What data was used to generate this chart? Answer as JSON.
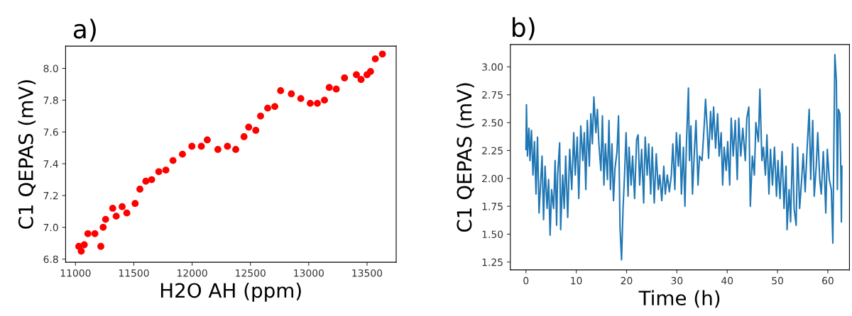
{
  "chart_data": [
    {
      "type": "scatter",
      "title": "a)",
      "xlabel": "H2O AH (ppm)",
      "ylabel": "C1 QEPAS (mV)",
      "marker": "circle",
      "grid": false,
      "legend": false,
      "x": [
        11028,
        11049,
        11075,
        11106,
        11166,
        11217,
        11237,
        11258,
        11319,
        11349,
        11400,
        11440,
        11511,
        11552,
        11603,
        11653,
        11714,
        11775,
        11836,
        11917,
        11998,
        12079,
        12130,
        12221,
        12303,
        12374,
        12445,
        12485,
        12546,
        12587,
        12648,
        12709,
        12759,
        12851,
        12932,
        13013,
        13074,
        13135,
        13176,
        13236,
        13307,
        13409,
        13449,
        13500,
        13530,
        13571,
        13632
      ],
      "series": [
        {
          "color": "#ff0000",
          "values": [
            6.88,
            6.85,
            6.89,
            6.96,
            6.96,
            6.88,
            7.0,
            7.05,
            7.12,
            7.07,
            7.13,
            7.09,
            7.15,
            7.24,
            7.29,
            7.3,
            7.35,
            7.36,
            7.42,
            7.46,
            7.51,
            7.51,
            7.55,
            7.49,
            7.51,
            7.49,
            7.57,
            7.63,
            7.61,
            7.7,
            7.75,
            7.76,
            7.86,
            7.84,
            7.81,
            7.78,
            7.78,
            7.8,
            7.88,
            7.87,
            7.94,
            7.96,
            7.93,
            7.96,
            7.98,
            8.06,
            8.09
          ]
        }
      ],
      "xlim": [
        10915,
        13750
      ],
      "ylim": [
        6.78,
        8.14
      ],
      "xticks": [
        11000,
        11500,
        12000,
        12500,
        13000,
        13500
      ],
      "yticks": [
        {
          "value": 6.8,
          "label": "6.8"
        },
        {
          "value": 7.0,
          "label": "7.0"
        },
        {
          "value": 7.2,
          "label": "7.2"
        },
        {
          "value": 7.4,
          "label": "7.4"
        },
        {
          "value": 7.6,
          "label": "7.6"
        },
        {
          "value": 7.8,
          "label": "7.8"
        },
        {
          "value": 8.0,
          "label": "8.0"
        }
      ]
    },
    {
      "type": "line",
      "title": "b)",
      "xlabel": "Time (h)",
      "ylabel": "C1 QEPAS (mV)",
      "marker": "none",
      "line_style": "solid",
      "grid": false,
      "legend": false,
      "x": [
        0,
        0.1,
        0.3,
        0.6,
        0.8,
        1.1,
        1.4,
        1.7,
        2.0,
        2.3,
        2.6,
        2.9,
        3.2,
        3.5,
        3.8,
        4.2,
        4.5,
        4.8,
        5.1,
        5.5,
        5.8,
        6.1,
        6.3,
        6.7,
        6.9,
        7.3,
        7.6,
        7.9,
        8.3,
        8.7,
        9.1,
        9.5,
        9.8,
        10.2,
        10.5,
        10.9,
        11.3,
        11.6,
        11.9,
        12.2,
        12.6,
        12.9,
        13.2,
        13.5,
        13.9,
        14.2,
        14.5,
        14.9,
        15.2,
        15.5,
        15.8,
        16.2,
        16.5,
        16.8,
        17.1,
        17.4,
        17.7,
        18.1,
        18.4,
        18.7,
        19.0,
        19.3,
        19.6,
        19.9,
        20.3,
        20.5,
        20.9,
        21.2,
        21.6,
        22.0,
        22.3,
        22.6,
        23.0,
        23.4,
        23.7,
        24.1,
        24.4,
        24.8,
        25.1,
        25.5,
        25.9,
        26.3,
        26.6,
        27.0,
        27.4,
        27.7,
        28.1,
        28.5,
        28.9,
        29.2,
        29.6,
        29.9,
        30.3,
        30.6,
        30.9,
        31.3,
        31.6,
        31.9,
        32.3,
        32.5,
        32.8,
        33.1,
        33.5,
        33.8,
        34.2,
        34.5,
        35.0,
        35.4,
        35.7,
        36.0,
        36.3,
        36.7,
        37.0,
        37.3,
        37.7,
        38.1,
        38.4,
        38.8,
        39.1,
        39.4,
        39.8,
        40.1,
        40.5,
        40.8,
        41.2,
        41.6,
        42.0,
        42.3,
        42.7,
        43.1,
        43.6,
        43.9,
        44.3,
        44.6,
        45.0,
        45.4,
        45.7,
        46.2,
        46.5,
        46.9,
        47.2,
        47.6,
        47.9,
        48.3,
        48.6,
        49.0,
        49.4,
        49.8,
        50.1,
        50.5,
        50.9,
        51.3,
        51.7,
        51.9,
        52.3,
        52.6,
        53.0,
        53.3,
        53.7,
        54.0,
        54.4,
        54.8,
        55.1,
        55.5,
        55.9,
        56.3,
        56.6,
        57.0,
        57.3,
        57.7,
        58.0,
        58.4,
        58.7,
        59.1,
        59.4,
        59.6,
        59.9,
        60.3,
        60.7,
        61.0,
        61.1,
        61.4,
        61.7,
        61.9,
        62.1,
        62.4,
        62.6,
        62.7,
        62.8
      ],
      "series": [
        {
          "color": "#1f77b4",
          "values": [
            2.26,
            2.66,
            2.2,
            2.45,
            2.16,
            2.43,
            2.03,
            2.33,
            1.86,
            2.37,
            1.69,
            1.94,
            2.2,
            1.63,
            2.11,
            1.73,
            1.99,
            1.49,
            1.9,
            1.73,
            2.16,
            1.58,
            2.03,
            2.32,
            1.54,
            2.03,
            1.73,
            2.2,
            1.65,
            2.26,
            1.9,
            2.41,
            2.03,
            2.37,
            1.82,
            2.47,
            2.16,
            2.41,
            1.9,
            2.52,
            2.11,
            2.58,
            2.31,
            2.73,
            2.41,
            2.62,
            2.31,
            2.07,
            2.56,
            1.94,
            2.31,
            1.99,
            2.52,
            1.9,
            2.31,
            1.8,
            2.09,
            2.24,
            2.56,
            1.56,
            1.27,
            1.73,
            2.03,
            2.41,
            1.84,
            2.28,
            1.94,
            2.2,
            1.82,
            2.35,
            2.39,
            1.94,
            2.26,
            1.78,
            2.37,
            2.03,
            2.31,
            1.86,
            2.28,
            1.78,
            2.22,
            1.9,
            2.03,
            1.8,
            2.11,
            1.86,
            2.03,
            1.88,
            2.03,
            2.31,
            1.9,
            2.41,
            2.11,
            2.39,
            1.86,
            2.28,
            1.75,
            2.31,
            2.81,
            2.16,
            2.47,
            1.86,
            2.26,
            2.52,
            1.94,
            2.2,
            2.16,
            2.45,
            2.71,
            2.47,
            2.18,
            2.6,
            2.35,
            2.64,
            2.27,
            2.58,
            2.2,
            2.41,
            1.94,
            2.28,
            2.07,
            2.33,
            1.94,
            2.54,
            2.2,
            2.52,
            1.99,
            2.54,
            2.2,
            2.45,
            2.16,
            2.54,
            2.64,
            1.75,
            2.2,
            2.03,
            2.5,
            2.33,
            2.8,
            2.16,
            2.28,
            2.03,
            2.39,
            1.86,
            2.26,
            1.94,
            2.28,
            1.84,
            2.16,
            1.82,
            2.24,
            1.73,
            2.11,
            1.54,
            1.9,
            1.61,
            2.31,
            1.73,
            1.58,
            2.28,
            1.73,
            1.99,
            2.22,
            1.88,
            2.28,
            2.62,
            1.99,
            2.52,
            1.84,
            2.11,
            2.41,
            1.99,
            1.86,
            2.24,
            1.94,
            1.69,
            2.26,
            1.99,
            1.9,
            1.42,
            1.84,
            3.11,
            2.88,
            1.9,
            2.62,
            2.58,
            2.03,
            1.61,
            2.11
          ]
        }
      ],
      "xlim": [
        -3.1,
        64.3
      ],
      "ylim": [
        1.18,
        3.2
      ],
      "xticks": [
        0,
        10,
        20,
        30,
        40,
        50,
        60
      ],
      "yticks": [
        {
          "value": 1.25,
          "label": "1.25"
        },
        {
          "value": 1.5,
          "label": "1.50"
        },
        {
          "value": 1.75,
          "label": "1.75"
        },
        {
          "value": 2.0,
          "label": "2.00"
        },
        {
          "value": 2.25,
          "label": "2.25"
        },
        {
          "value": 2.5,
          "label": "2.50"
        },
        {
          "value": 2.75,
          "label": "2.75"
        },
        {
          "value": 3.0,
          "label": "3.00"
        }
      ]
    }
  ]
}
